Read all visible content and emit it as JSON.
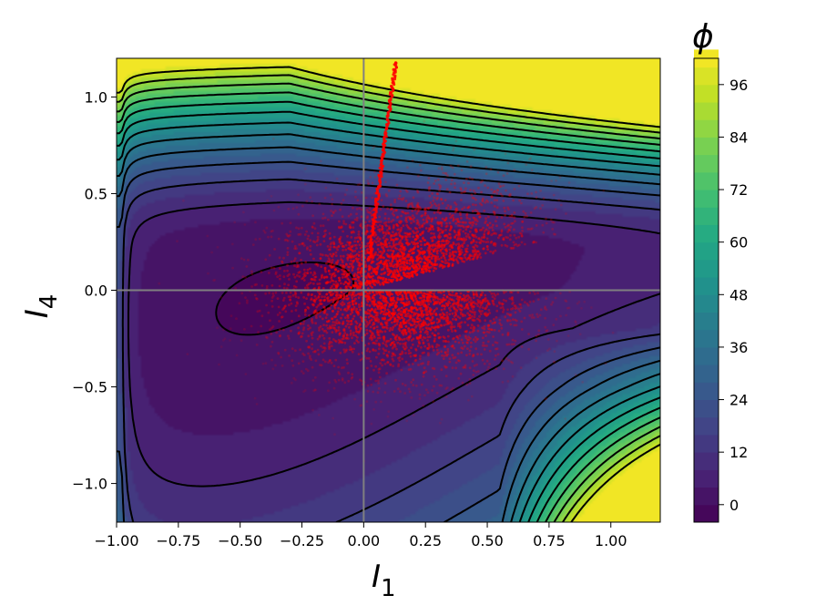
{
  "chart_data": {
    "type": "contour",
    "title": "",
    "xlabel": "I",
    "xlabel_sub": "1",
    "ylabel": "I",
    "ylabel_sub": "4",
    "xlim": [
      -1.0,
      1.2
    ],
    "ylim": [
      -1.2,
      1.2
    ],
    "xticks": [
      -1.0,
      -0.75,
      -0.5,
      -0.25,
      0.0,
      0.25,
      0.5,
      0.75,
      1.0
    ],
    "xtick_labels": [
      "−1.00",
      "−0.75",
      "−0.50",
      "−0.25",
      "0.00",
      "0.25",
      "0.50",
      "0.75",
      "1.00"
    ],
    "yticks": [
      -1.0,
      -0.5,
      0.0,
      0.5,
      1.0
    ],
    "ytick_labels": [
      "−1.0",
      "−0.5",
      "0.0",
      "0.5",
      "1.0"
    ],
    "reference_lines": {
      "x": 0.0,
      "y": 0.0,
      "color": "#808080"
    },
    "colorbar": {
      "label": "ϕ",
      "range": [
        -4,
        102
      ],
      "ticks": [
        0,
        12,
        24,
        36,
        48,
        60,
        72,
        84,
        96
      ],
      "tick_labels": [
        "0",
        "12",
        "24",
        "36",
        "48",
        "60",
        "72",
        "84",
        "96"
      ],
      "colormap": "viridis"
    },
    "contour_line_color": "#000000",
    "scatter": {
      "color": "#ff0000",
      "description_free": true,
      "cloud_center": [
        0.15,
        0.0
      ],
      "ridge_line": {
        "x": [
          0.02,
          0.13
        ],
        "y": [
          0.15,
          1.18
        ]
      }
    }
  }
}
